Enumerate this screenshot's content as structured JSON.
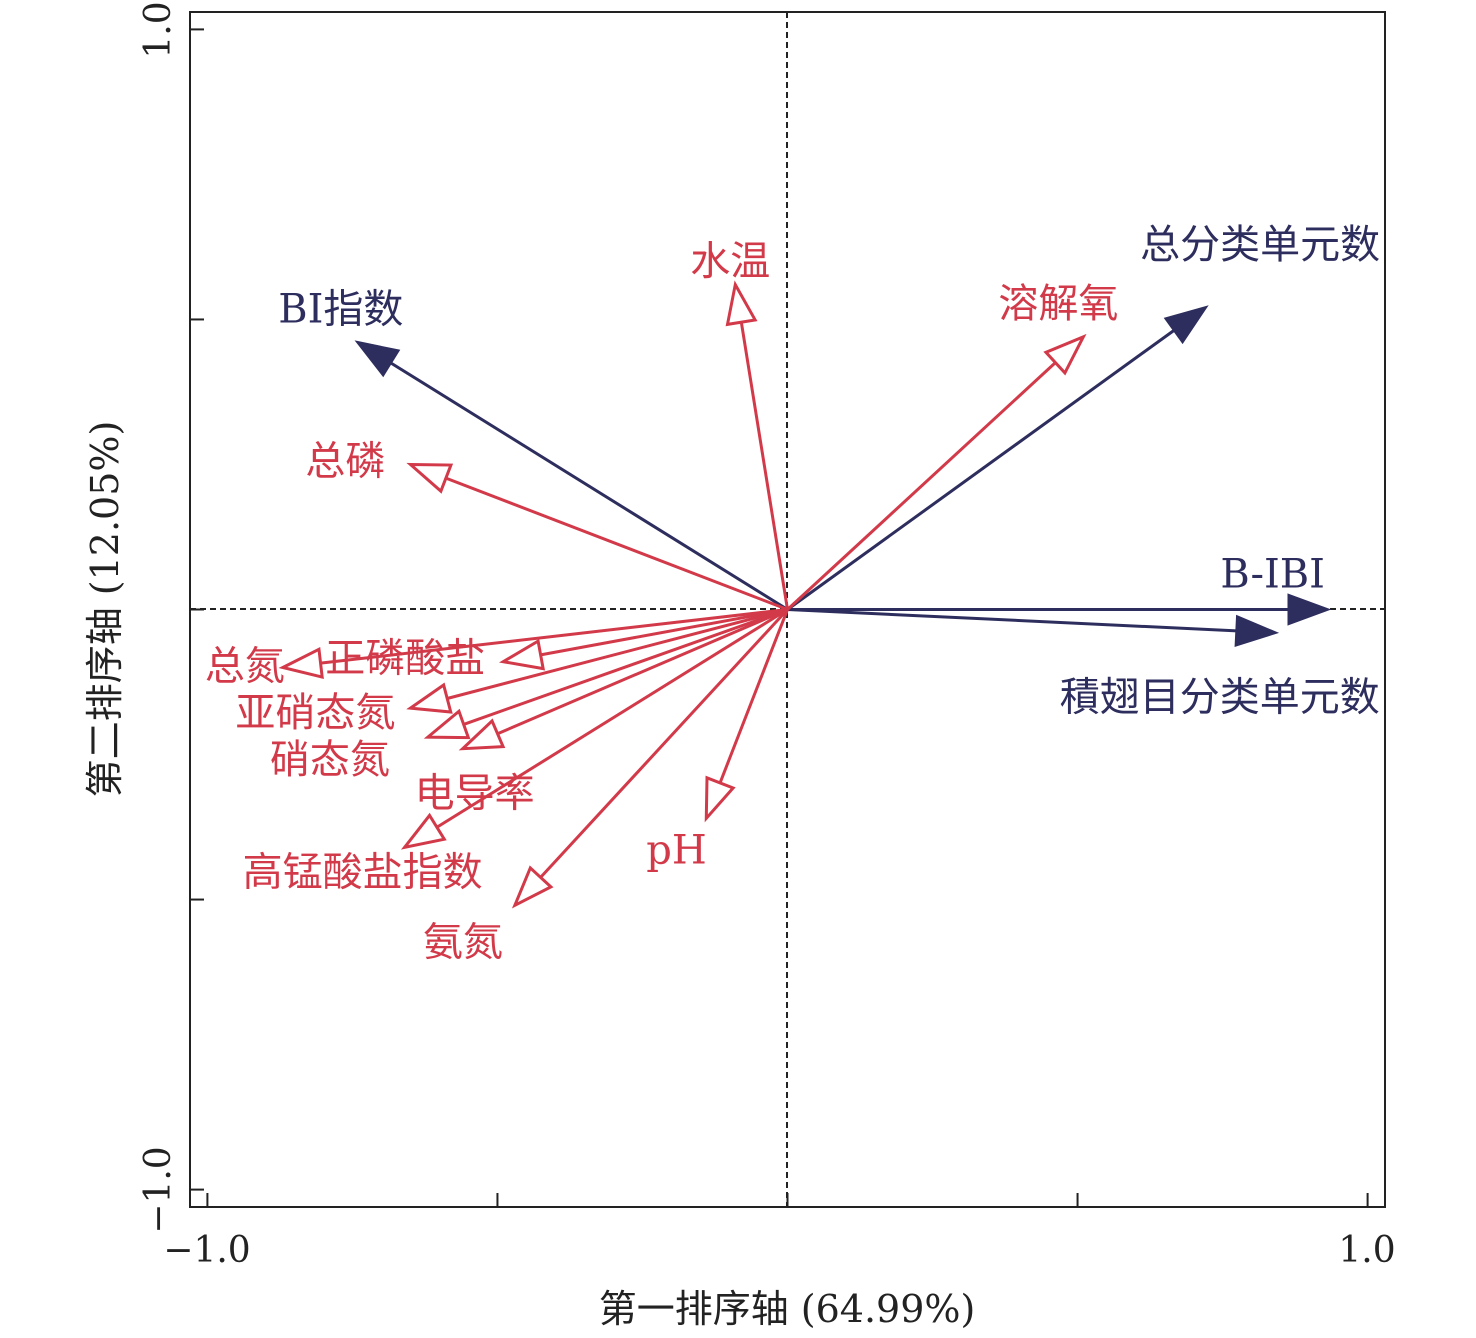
{
  "chart_data": {
    "type": "biplot",
    "xlabel": "第一排序轴 (64.99%)",
    "ylabel": "第二排序轴 (12.05%)",
    "xlim": [
      -1.03,
      1.03
    ],
    "ylim": [
      -1.03,
      1.03
    ],
    "xticks": [
      -1.0,
      -0.5,
      0,
      0.5,
      1.0
    ],
    "yticks": [
      -1.0,
      -0.5,
      0,
      0.5,
      1.0
    ],
    "xtick_labels": [
      "−1.0",
      "1.0"
    ],
    "ytick_labels": [
      "−1.0",
      "1.0"
    ],
    "colors": {
      "species": "#2e2e5e",
      "environment": "#d23a4a"
    },
    "series": [
      {
        "name": "species",
        "filled_arrows": true,
        "arrows": [
          {
            "label": "B-IBI",
            "x": 0.93,
            "y": 0.0
          },
          {
            "label": "積翅目分类单元数",
            "x": 0.84,
            "y": -0.04
          },
          {
            "label": "总分类单元数",
            "x": 0.72,
            "y": 0.52
          },
          {
            "label": "BI指数",
            "x": -0.74,
            "y": 0.46
          }
        ]
      },
      {
        "name": "environment",
        "filled_arrows": false,
        "arrows": [
          {
            "label": "水温",
            "x": -0.09,
            "y": 0.56
          },
          {
            "label": "溶解氧",
            "x": 0.51,
            "y": 0.47
          },
          {
            "label": "总磷",
            "x": -0.65,
            "y": 0.25
          },
          {
            "label": "总氮",
            "x": -0.87,
            "y": -0.1
          },
          {
            "label": "正磷酸盐",
            "x": -0.49,
            "y": -0.09
          },
          {
            "label": "亚硝态氮",
            "x": -0.65,
            "y": -0.17
          },
          {
            "label": "硝态氮",
            "x": -0.62,
            "y": -0.22
          },
          {
            "label": "电导率",
            "x": -0.56,
            "y": -0.24
          },
          {
            "label": "高锰酸盐指数",
            "x": -0.66,
            "y": -0.41
          },
          {
            "label": "氨氮",
            "x": -0.47,
            "y": -0.51
          },
          {
            "label": "pH",
            "x": -0.14,
            "y": -0.36
          }
        ]
      }
    ]
  }
}
